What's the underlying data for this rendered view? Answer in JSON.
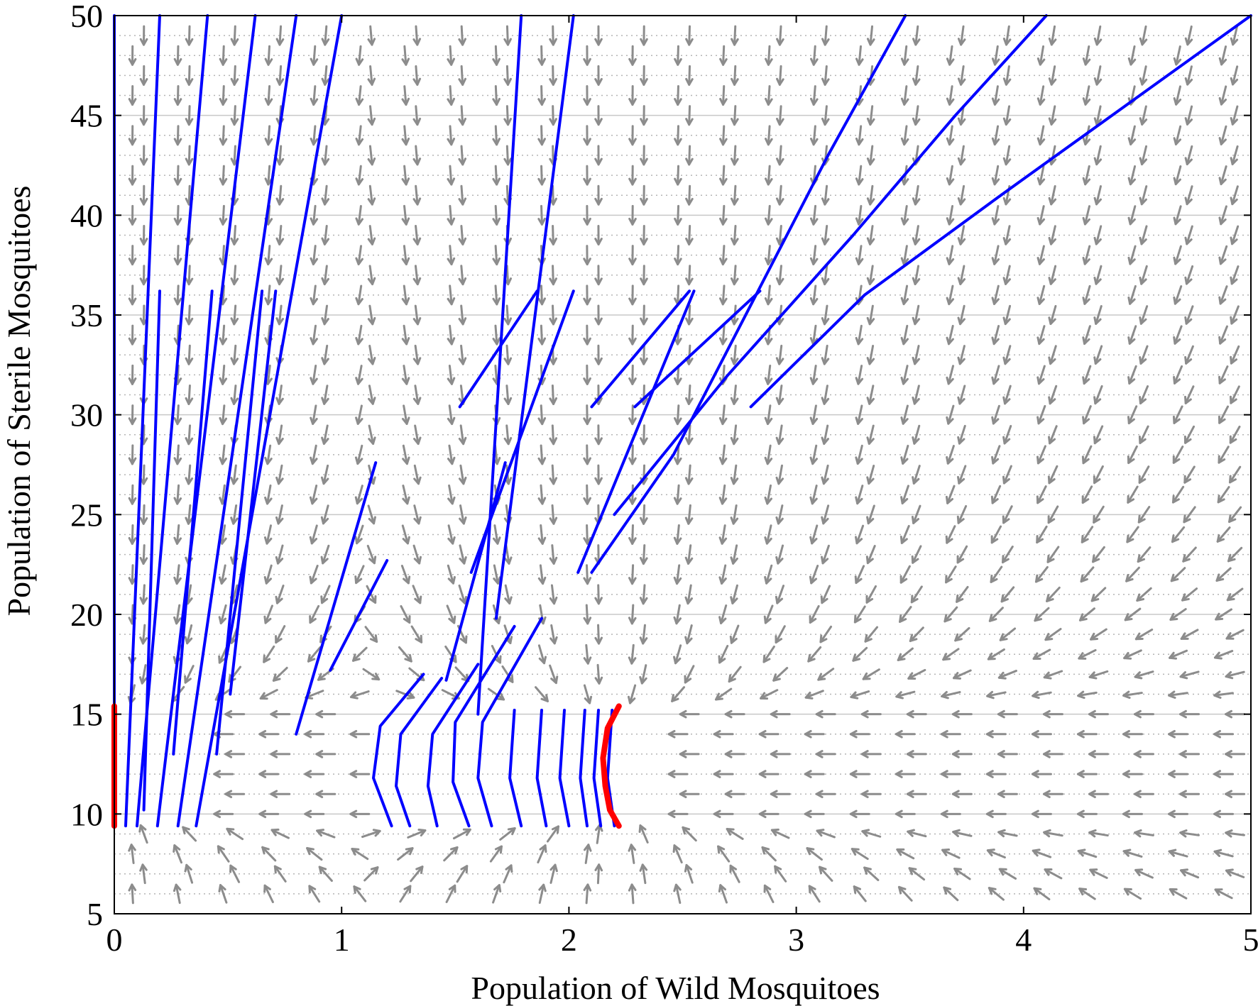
{
  "chart_data": {
    "type": "phase-portrait",
    "title": "",
    "xlabel": "Population of Wild Mosquitoes",
    "ylabel": "Population of Sterile Mosquitoes",
    "xlim": [
      0,
      5
    ],
    "ylim": [
      5,
      50
    ],
    "x_ticks": [
      "0",
      "1",
      "2",
      "3",
      "4",
      "5"
    ],
    "y_ticks": [
      "5",
      "10",
      "15",
      "20",
      "25",
      "30",
      "35",
      "40",
      "45",
      "50"
    ],
    "grid": {
      "major_y": [
        10,
        15,
        20,
        25,
        30,
        35,
        40,
        45,
        50
      ],
      "minor_y_dotted": true,
      "vertical": false
    },
    "colors": {
      "trajectory": "#0000ff",
      "equilibrium_segment": "#ff0000",
      "vector_arrow": "#8c8c8c",
      "grid_major": "#c8c8c8",
      "grid_minor": "#b4b4b4"
    },
    "equilibrium_segments": [
      {
        "name": "",
        "points": [
          [
            0.0,
            9.4
          ],
          [
            0.0,
            15.4
          ]
        ]
      },
      {
        "name": "",
        "points": [
          [
            2.22,
            9.4
          ],
          [
            2.18,
            10.2
          ],
          [
            2.16,
            11.4
          ],
          [
            2.15,
            12.8
          ],
          [
            2.17,
            14.3
          ],
          [
            2.22,
            15.4
          ]
        ]
      }
    ],
    "trajectories": [
      {
        "points": [
          [
            0.0,
            9.4
          ],
          [
            0.0,
            50.0
          ]
        ]
      },
      {
        "points": [
          [
            0.05,
            9.4
          ],
          [
            0.2,
            50.0
          ]
        ]
      },
      {
        "points": [
          [
            0.1,
            9.4
          ],
          [
            0.41,
            50.0
          ]
        ]
      },
      {
        "points": [
          [
            0.19,
            9.4
          ],
          [
            0.62,
            50.0
          ]
        ]
      },
      {
        "points": [
          [
            0.28,
            9.4
          ],
          [
            0.8,
            50.0
          ]
        ]
      },
      {
        "points": [
          [
            0.36,
            9.4
          ],
          [
            1.0,
            50.0
          ]
        ]
      },
      {
        "points": [
          [
            0.13,
            10.2
          ],
          [
            0.2,
            36.2
          ]
        ]
      },
      {
        "points": [
          [
            0.26,
            13.0
          ],
          [
            0.43,
            36.2
          ]
        ]
      },
      {
        "points": [
          [
            0.45,
            13.0
          ],
          [
            0.65,
            36.2
          ]
        ]
      },
      {
        "points": [
          [
            0.51,
            16.0
          ],
          [
            0.71,
            36.2
          ]
        ]
      },
      {
        "points": [
          [
            0.8,
            14.0
          ],
          [
            1.15,
            27.6
          ]
        ]
      },
      {
        "points": [
          [
            0.95,
            17.2
          ],
          [
            1.2,
            22.7
          ]
        ]
      },
      {
        "points": [
          [
            1.46,
            16.7
          ],
          [
            1.72,
            27.6
          ]
        ]
      },
      {
        "points": [
          [
            1.57,
            22.1
          ],
          [
            2.02,
            36.2
          ]
        ]
      },
      {
        "points": [
          [
            1.52,
            30.4
          ],
          [
            1.86,
            36.2
          ]
        ]
      },
      {
        "points": [
          [
            1.6,
            15.0
          ],
          [
            1.79,
            50.0
          ]
        ]
      },
      {
        "points": [
          [
            1.68,
            19.8
          ],
          [
            2.02,
            50.0
          ]
        ]
      },
      {
        "points": [
          [
            2.1,
            30.4
          ],
          [
            2.53,
            36.2
          ]
        ]
      },
      {
        "points": [
          [
            2.04,
            22.1
          ],
          [
            2.55,
            36.2
          ]
        ]
      },
      {
        "points": [
          [
            2.29,
            30.4
          ],
          [
            2.84,
            36.2
          ]
        ]
      },
      {
        "points": [
          [
            2.1,
            22.1
          ],
          [
            2.46,
            28.0
          ],
          [
            2.8,
            35.5
          ],
          [
            3.14,
            43.0
          ],
          [
            3.48,
            50.0
          ]
        ]
      },
      {
        "points": [
          [
            2.2,
            25.0
          ],
          [
            2.7,
            32.0
          ],
          [
            3.25,
            39.0
          ],
          [
            3.7,
            45.0
          ],
          [
            4.1,
            50.0
          ]
        ]
      },
      {
        "points": [
          [
            2.8,
            30.4
          ],
          [
            3.3,
            36.0
          ],
          [
            3.9,
            41.0
          ],
          [
            4.45,
            45.5
          ],
          [
            5.0,
            50.0
          ]
        ]
      },
      {
        "points": [
          [
            1.22,
            9.4
          ],
          [
            1.14,
            11.8
          ],
          [
            1.17,
            14.4
          ],
          [
            1.36,
            17.0
          ]
        ]
      },
      {
        "points": [
          [
            1.3,
            9.4
          ],
          [
            1.24,
            11.4
          ],
          [
            1.26,
            14.0
          ],
          [
            1.44,
            16.8
          ]
        ]
      },
      {
        "points": [
          [
            1.42,
            9.4
          ],
          [
            1.38,
            11.4
          ],
          [
            1.4,
            14.0
          ],
          [
            1.6,
            17.5
          ]
        ]
      },
      {
        "points": [
          [
            1.56,
            9.4
          ],
          [
            1.49,
            11.6
          ],
          [
            1.5,
            14.6
          ],
          [
            1.76,
            19.4
          ]
        ]
      },
      {
        "points": [
          [
            1.66,
            9.4
          ],
          [
            1.6,
            11.8
          ],
          [
            1.62,
            14.6
          ],
          [
            1.88,
            19.8
          ]
        ]
      },
      {
        "points": [
          [
            1.79,
            9.4
          ],
          [
            1.74,
            11.8
          ],
          [
            1.76,
            15.2
          ]
        ]
      },
      {
        "points": [
          [
            1.9,
            9.4
          ],
          [
            1.86,
            11.8
          ],
          [
            1.88,
            15.2
          ]
        ]
      },
      {
        "points": [
          [
            2.0,
            9.4
          ],
          [
            1.96,
            11.8
          ],
          [
            1.98,
            15.2
          ]
        ]
      },
      {
        "points": [
          [
            2.08,
            9.4
          ],
          [
            2.05,
            11.8
          ],
          [
            2.07,
            15.2
          ]
        ]
      },
      {
        "points": [
          [
            2.14,
            9.4
          ],
          [
            2.11,
            11.8
          ],
          [
            2.13,
            15.2
          ]
        ]
      },
      {
        "points": [
          [
            2.2,
            9.4
          ],
          [
            2.17,
            11.8
          ],
          [
            2.19,
            15.2
          ]
        ]
      }
    ],
    "arrow_field_direction": "toward the red equilibrium segments (down-left above, up-left below)"
  }
}
